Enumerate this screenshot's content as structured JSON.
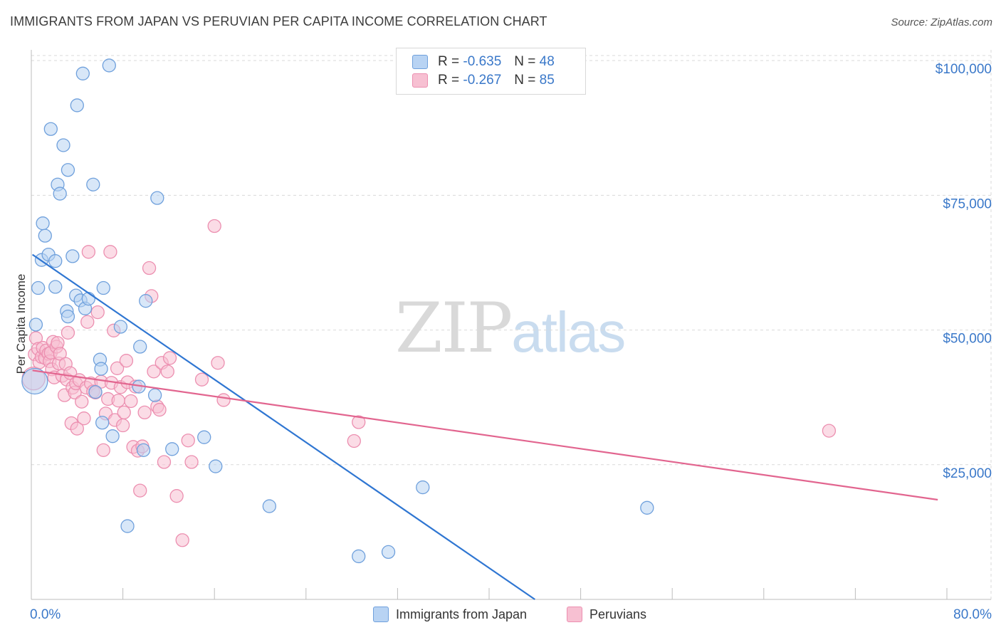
{
  "title": "IMMIGRANTS FROM JAPAN VS PERUVIAN PER CAPITA INCOME CORRELATION CHART",
  "source": "Source: ZipAtlas.com",
  "watermark": {
    "zip": "ZIP",
    "atlas": "atlas"
  },
  "legend": {
    "r_label": "R =",
    "n_label": "N =",
    "japan": {
      "r": "-0.635",
      "n": "48"
    },
    "peru": {
      "r": "-0.267",
      "n": "85"
    }
  },
  "colors": {
    "japan_fill": "#b8d3f3",
    "japan_stroke": "#6fa0dc",
    "japan_line": "#2f76d2",
    "peru_fill": "#f7c0d2",
    "peru_stroke": "#ec8fb0",
    "peru_line": "#e2658f",
    "axis_text": "#3a78c9",
    "grid": "#d9d9d9"
  },
  "chart_data": {
    "type": "scatter",
    "xlabel": "",
    "ylabel": "Per Capita Income",
    "xlim": [
      0,
      80
    ],
    "ylim": [
      0,
      102000
    ],
    "x_tick_labels": [
      "0.0%",
      "80.0%"
    ],
    "y_ticks": [
      25000,
      50000,
      75000,
      100000
    ],
    "y_tick_labels": [
      "$25,000",
      "$50,000",
      "$75,000",
      "$100,000"
    ],
    "grid": true,
    "legend_position": "bottom",
    "series": [
      {
        "name": "Immigrants from Japan",
        "trend": {
          "x0": 0.1,
          "y0": 64000,
          "x1": 44,
          "y1": 0
        },
        "points": [
          [
            0.3,
            40500,
            18
          ],
          [
            0.4,
            51000,
            9
          ],
          [
            0.6,
            57800,
            9
          ],
          [
            0.9,
            63000,
            9
          ],
          [
            1.0,
            69800,
            9
          ],
          [
            1.2,
            67500,
            9
          ],
          [
            1.5,
            64000,
            9
          ],
          [
            1.7,
            87300,
            9
          ],
          [
            2.1,
            58000,
            9
          ],
          [
            2.1,
            62800,
            9
          ],
          [
            2.3,
            77000,
            9
          ],
          [
            2.5,
            75300,
            9
          ],
          [
            2.8,
            84300,
            9
          ],
          [
            3.1,
            53500,
            9
          ],
          [
            3.2,
            52500,
            9
          ],
          [
            3.2,
            79700,
            9
          ],
          [
            3.6,
            63700,
            9
          ],
          [
            4.0,
            91700,
            9
          ],
          [
            3.9,
            56400,
            9
          ],
          [
            4.3,
            55500,
            9
          ],
          [
            4.5,
            97600,
            9
          ],
          [
            4.7,
            54000,
            9
          ],
          [
            5.0,
            55800,
            9
          ],
          [
            5.4,
            77000,
            9
          ],
          [
            5.6,
            38500,
            9
          ],
          [
            6.0,
            44500,
            9
          ],
          [
            6.1,
            42800,
            9
          ],
          [
            6.2,
            32800,
            9
          ],
          [
            6.3,
            57800,
            9
          ],
          [
            6.8,
            99100,
            9
          ],
          [
            7.1,
            30300,
            9
          ],
          [
            7.8,
            50600,
            9
          ],
          [
            8.4,
            13600,
            9
          ],
          [
            9.4,
            39500,
            9
          ],
          [
            9.5,
            46900,
            9
          ],
          [
            9.8,
            27700,
            9
          ],
          [
            10.0,
            55400,
            9
          ],
          [
            10.8,
            37900,
            9
          ],
          [
            11.0,
            74500,
            9
          ],
          [
            12.3,
            27900,
            9
          ],
          [
            15.1,
            30100,
            9
          ],
          [
            16.1,
            24700,
            9
          ],
          [
            20.8,
            17300,
            9
          ],
          [
            28.6,
            8000,
            9
          ],
          [
            31.2,
            8800,
            9
          ],
          [
            34.2,
            20800,
            9
          ],
          [
            53.8,
            17000,
            9
          ]
        ]
      },
      {
        "name": "Peruvians",
        "trend": {
          "x0": 0.1,
          "y0": 42500,
          "x1": 79.2,
          "y1": 18500
        },
        "points": [
          [
            0.2,
            41000,
            16
          ],
          [
            0.3,
            45500,
            9
          ],
          [
            0.4,
            48500,
            9
          ],
          [
            0.6,
            46500,
            9
          ],
          [
            0.7,
            44000,
            9
          ],
          [
            0.9,
            45000,
            9
          ],
          [
            1.0,
            46700,
            9
          ],
          [
            1.2,
            44800,
            9
          ],
          [
            1.3,
            46200,
            9
          ],
          [
            1.5,
            45600,
            9
          ],
          [
            1.6,
            44200,
            9
          ],
          [
            1.7,
            45800,
            9
          ],
          [
            1.8,
            42700,
            9
          ],
          [
            1.9,
            47800,
            9
          ],
          [
            2.0,
            41200,
            9
          ],
          [
            2.2,
            46900,
            9
          ],
          [
            2.3,
            47600,
            9
          ],
          [
            2.4,
            43800,
            9
          ],
          [
            2.5,
            45600,
            9
          ],
          [
            2.7,
            41500,
            9
          ],
          [
            2.9,
            37900,
            9
          ],
          [
            3.0,
            43700,
            9
          ],
          [
            3.1,
            40800,
            9
          ],
          [
            3.2,
            49500,
            9
          ],
          [
            3.4,
            42000,
            9
          ],
          [
            3.5,
            32700,
            9
          ],
          [
            3.6,
            39300,
            9
          ],
          [
            3.8,
            38400,
            9
          ],
          [
            3.9,
            40100,
            9
          ],
          [
            4.0,
            31700,
            9
          ],
          [
            4.2,
            40700,
            9
          ],
          [
            4.4,
            36700,
            9
          ],
          [
            4.6,
            33600,
            9
          ],
          [
            4.8,
            39300,
            9
          ],
          [
            4.9,
            51500,
            9
          ],
          [
            5.0,
            64500,
            9
          ],
          [
            5.2,
            40100,
            9
          ],
          [
            5.4,
            38600,
            9
          ],
          [
            5.6,
            38400,
            9
          ],
          [
            5.8,
            53300,
            9
          ],
          [
            6.1,
            40400,
            9
          ],
          [
            6.3,
            27700,
            9
          ],
          [
            6.5,
            34500,
            9
          ],
          [
            6.7,
            37200,
            9
          ],
          [
            6.9,
            64500,
            9
          ],
          [
            7.0,
            40200,
            9
          ],
          [
            7.2,
            49900,
            9
          ],
          [
            7.3,
            33300,
            9
          ],
          [
            7.5,
            42900,
            9
          ],
          [
            7.6,
            36900,
            9
          ],
          [
            7.8,
            39400,
            9
          ],
          [
            8.0,
            32300,
            9
          ],
          [
            8.1,
            34700,
            9
          ],
          [
            8.3,
            44300,
            9
          ],
          [
            8.4,
            40300,
            9
          ],
          [
            8.7,
            36800,
            9
          ],
          [
            8.9,
            28300,
            9
          ],
          [
            9.1,
            39500,
            9
          ],
          [
            9.3,
            27600,
            9
          ],
          [
            9.5,
            20200,
            9
          ],
          [
            9.7,
            28400,
            9
          ],
          [
            9.9,
            34700,
            9
          ],
          [
            10.3,
            61500,
            9
          ],
          [
            10.5,
            56300,
            9
          ],
          [
            10.7,
            42300,
            9
          ],
          [
            11.0,
            35800,
            9
          ],
          [
            11.2,
            35200,
            9
          ],
          [
            11.4,
            43900,
            9
          ],
          [
            11.6,
            25500,
            9
          ],
          [
            11.9,
            42300,
            9
          ],
          [
            12.1,
            44800,
            9
          ],
          [
            12.7,
            19200,
            9
          ],
          [
            13.2,
            11000,
            9
          ],
          [
            13.7,
            29500,
            9
          ],
          [
            14.0,
            25500,
            9
          ],
          [
            14.9,
            40800,
            9
          ],
          [
            16.0,
            69300,
            9
          ],
          [
            16.3,
            43900,
            9
          ],
          [
            16.8,
            37000,
            9
          ],
          [
            28.2,
            29400,
            9
          ],
          [
            28.6,
            32900,
            9
          ],
          [
            69.7,
            31300,
            9
          ]
        ]
      }
    ]
  },
  "bottom_legend": {
    "japan": "Immigrants from Japan",
    "peru": "Peruvians"
  }
}
